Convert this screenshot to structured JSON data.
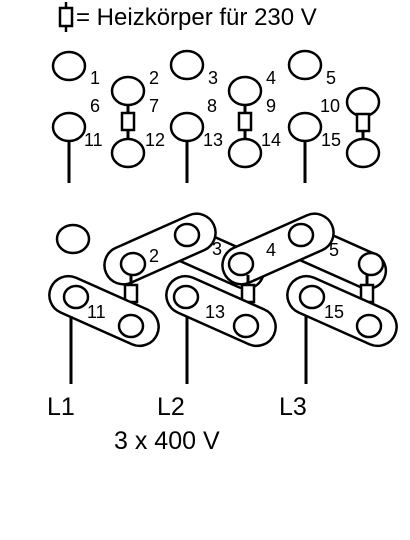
{
  "header": {
    "text": "= Heizkörper für  230 V",
    "symbol": "resistor-icon"
  },
  "top_labels": [
    "1",
    "2",
    "3",
    "4",
    "5",
    "6",
    "7",
    "8",
    "9",
    "10",
    "11",
    "12",
    "13",
    "14",
    "15"
  ],
  "bottom_labels": [
    "2",
    "3",
    "4",
    "5",
    "11",
    "13",
    "15"
  ],
  "phases": [
    "L1",
    "L2",
    "L3"
  ],
  "footer": {
    "text": "3 x 400 V"
  },
  "colors": {
    "stroke": "#000000",
    "fill": "#ffffff",
    "background": "#ffffff"
  }
}
